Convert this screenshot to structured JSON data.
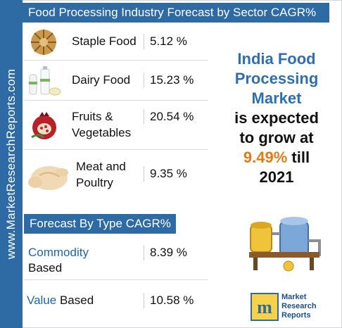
{
  "header": {
    "title": "Food Processing Industry Forecast by Sector CAGR%"
  },
  "side_label": "www.MarketResearchReports.com",
  "sectors": [
    {
      "label_line1": "Staple Food",
      "label_line2": "",
      "value": "5.12 %",
      "icon": "grain-bowls-icon"
    },
    {
      "label_line1": "Dairy Food",
      "label_line2": "",
      "value": "15.23 %",
      "icon": "milk-bottles-icon"
    },
    {
      "label_line1": "Fruits &",
      "label_line2": "Vegetables",
      "value": "20.54 %",
      "icon": "pomegranate-icon"
    },
    {
      "label_line1": "Meat and",
      "label_line2": "Poultry",
      "value": "9.35 %",
      "icon": "chicken-icon"
    }
  ],
  "type_header": "Forecast By Type CAGR%",
  "types": [
    {
      "label_blue": "Commodity",
      "label_black": "Based",
      "value": "8.39 %"
    },
    {
      "label_blue": "Value",
      "label_black": "Based",
      "value": "10.58 %"
    }
  ],
  "headline": {
    "line1": "India Food",
    "line2": "Processing",
    "line3": "Market",
    "line4": "is expected",
    "line5": "to grow at",
    "highlight": "9.49%",
    "line6_suffix": "till",
    "line7": "2021"
  },
  "logo": {
    "letter": "m",
    "line1": "Market",
    "line2": "Research",
    "line3": "Reports"
  },
  "colors": {
    "brand_blue": "#2e6aa3",
    "headline_blue": "#2f6fb0",
    "highlight_orange": "#e07b16"
  },
  "chart_data": {
    "type": "table",
    "title": "Food Processing Industry Forecast by Sector CAGR%",
    "categories": [
      "Staple Food",
      "Dairy Food",
      "Fruits & Vegetables",
      "Meat and Poultry"
    ],
    "values": [
      5.12,
      15.23,
      20.54,
      9.35
    ],
    "secondary_title": "Forecast By Type CAGR%",
    "secondary_categories": [
      "Commodity Based",
      "Value Based"
    ],
    "secondary_values": [
      8.39,
      10.58
    ],
    "unit": "%"
  }
}
